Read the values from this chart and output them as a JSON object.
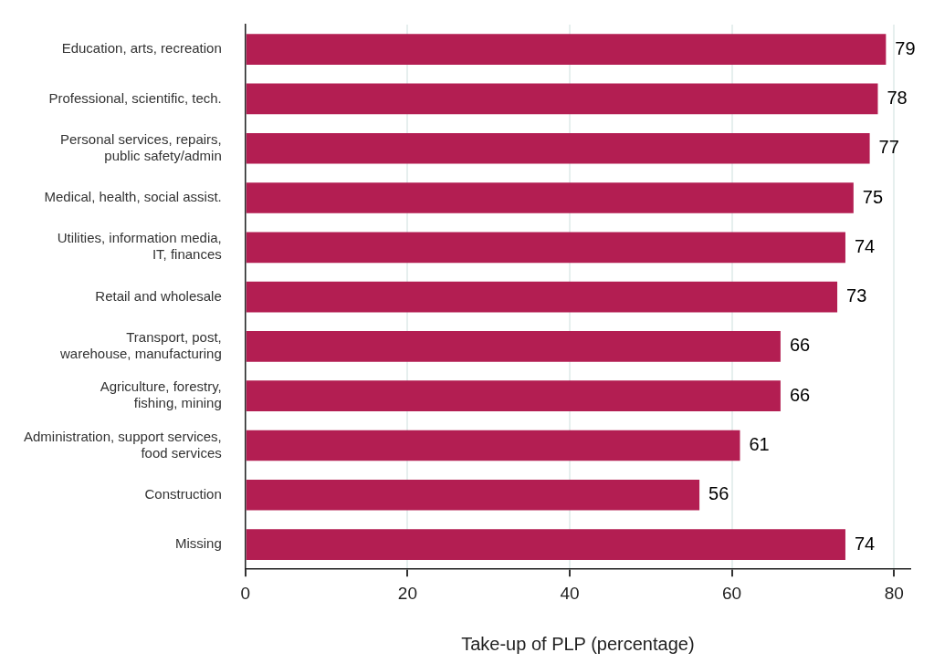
{
  "chart_data": {
    "type": "bar",
    "orientation": "horizontal",
    "xlabel": "Take-up of PLP (percentage)",
    "categories": [
      "Education, arts, recreation",
      "Professional, scientific, tech.",
      "Personal services, repairs,\npublic safety/admin",
      "Medical, health, social assist.",
      "Utilities, information media,\nIT, finances",
      "Retail and wholesale",
      "Transport, post,\nwarehouse, manufacturing",
      "Agriculture, forestry,\nfishing, mining",
      "Administration, support services,\nfood services",
      "Construction",
      "Missing"
    ],
    "values": [
      79,
      78,
      77,
      75,
      74,
      73,
      66,
      66,
      61,
      56,
      74
    ],
    "color": "#b31e52",
    "xlim": [
      0,
      82
    ],
    "xticks": [
      0,
      20,
      40,
      60,
      80
    ],
    "grid": "x",
    "data_labels": true,
    "legend": false
  }
}
